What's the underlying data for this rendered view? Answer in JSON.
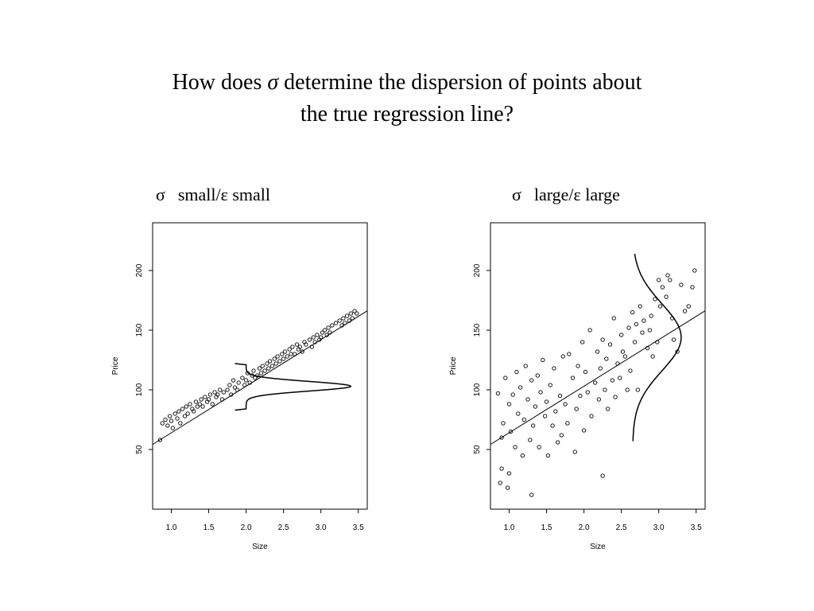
{
  "title": {
    "part1": "How does ",
    "sigma": "σ",
    "part2": " determine the dispersion of points about",
    "line2": "the true regression line?"
  },
  "panels": {
    "left": {
      "sigma": "σ",
      "text": "small/ε small"
    },
    "right": {
      "sigma": "σ",
      "text": "large/ε large"
    }
  },
  "chart_data": [
    {
      "type": "scatter",
      "title": "",
      "xlabel": "Size",
      "ylabel": "Price",
      "xlim": [
        0.75,
        3.62
      ],
      "ylim": [
        0,
        240
      ],
      "xticks": [
        "1.0",
        "1.5",
        "2.0",
        "2.5",
        "3.0",
        "3.5"
      ],
      "yticks": [
        "50",
        "100",
        "150",
        "200"
      ],
      "grid": false,
      "regression_line": {
        "intercept": 25,
        "slope": 39
      },
      "density_curve": {
        "center_x": 2.0,
        "mean": 103,
        "sd": 4,
        "height": 1.4,
        "range": [
          84,
          121
        ]
      },
      "series": [
        {
          "x": [
            0.85,
            0.88,
            0.92,
            0.95,
            0.98,
            1.0,
            1.02,
            1.05,
            1.08,
            1.1,
            1.12,
            1.15,
            1.18,
            1.2,
            1.22,
            1.25,
            1.28,
            1.3,
            1.33,
            1.35,
            1.38,
            1.4,
            1.42,
            1.45,
            1.48,
            1.5,
            1.52,
            1.55,
            1.58,
            1.6,
            1.62,
            1.65,
            1.68,
            1.7,
            1.75,
            1.78,
            1.8,
            1.83,
            1.85,
            1.88,
            1.9,
            1.95,
            1.98,
            2.0,
            2.02,
            2.05,
            2.08,
            2.1,
            2.12,
            2.15,
            2.18,
            2.2,
            2.22,
            2.25,
            2.28,
            2.3,
            2.32,
            2.35,
            2.38,
            2.4,
            2.42,
            2.45,
            2.48,
            2.5,
            2.52,
            2.55,
            2.58,
            2.6,
            2.62,
            2.65,
            2.68,
            2.7,
            2.72,
            2.75,
            2.78,
            2.8,
            2.85,
            2.88,
            2.9,
            2.92,
            2.95,
            2.98,
            3.0,
            3.02,
            3.05,
            3.08,
            3.1,
            3.12,
            3.15,
            3.2,
            3.25,
            3.28,
            3.3,
            3.32,
            3.35,
            3.38,
            3.4,
            3.42,
            3.45,
            3.48
          ],
          "y": [
            58,
            72,
            75,
            70,
            78,
            74,
            68,
            80,
            76,
            82,
            72,
            84,
            78,
            86,
            80,
            88,
            84,
            82,
            90,
            86,
            88,
            92,
            86,
            94,
            90,
            92,
            96,
            88,
            98,
            94,
            96,
            100,
            92,
            98,
            100,
            104,
            96,
            108,
            102,
            100,
            106,
            110,
            104,
            108,
            114,
            106,
            112,
            116,
            110,
            112,
            118,
            114,
            120,
            116,
            122,
            118,
            124,
            120,
            126,
            122,
            128,
            124,
            130,
            126,
            132,
            128,
            134,
            130,
            136,
            130,
            138,
            134,
            136,
            132,
            140,
            138,
            142,
            136,
            144,
            140,
            146,
            142,
            144,
            148,
            150,
            146,
            152,
            148,
            154,
            156,
            158,
            154,
            160,
            156,
            162,
            158,
            164,
            160,
            166,
            164
          ]
        }
      ]
    },
    {
      "type": "scatter",
      "title": "",
      "xlabel": "Size",
      "ylabel": "Price",
      "xlim": [
        0.75,
        3.62
      ],
      "ylim": [
        0,
        240
      ],
      "xticks": [
        "1.0",
        "1.5",
        "2.0",
        "2.5",
        "3.0",
        "3.5"
      ],
      "yticks": [
        "50",
        "100",
        "150",
        "200"
      ],
      "grid": false,
      "regression_line": {
        "intercept": 25,
        "slope": 39
      },
      "density_curve": {
        "center_y": 144,
        "base_x": 2.65,
        "mean_x": 3.3,
        "sd": 28,
        "height": 0.65,
        "range": [
          57,
          214
        ]
      },
      "series": [
        {
          "x": [
            0.85,
            0.88,
            0.9,
            0.92,
            0.95,
            0.98,
            1.0,
            1.02,
            1.05,
            1.08,
            1.1,
            1.12,
            1.15,
            1.18,
            1.2,
            1.22,
            1.25,
            1.28,
            1.3,
            1.32,
            1.35,
            1.38,
            1.4,
            1.42,
            1.45,
            1.48,
            1.5,
            1.52,
            1.55,
            1.58,
            1.6,
            1.62,
            1.65,
            1.68,
            1.7,
            1.72,
            1.75,
            1.78,
            1.8,
            1.85,
            1.88,
            1.9,
            1.92,
            1.95,
            1.98,
            2.0,
            2.02,
            2.05,
            2.08,
            2.1,
            2.15,
            2.18,
            2.2,
            2.22,
            2.25,
            2.28,
            2.3,
            2.32,
            2.35,
            2.38,
            2.4,
            2.42,
            2.45,
            2.48,
            2.5,
            2.52,
            2.55,
            2.58,
            2.6,
            2.62,
            2.65,
            2.68,
            2.7,
            2.72,
            2.75,
            2.78,
            2.8,
            2.85,
            2.88,
            2.9,
            2.92,
            2.95,
            2.98,
            3.0,
            3.02,
            3.05,
            3.1,
            3.12,
            3.15,
            3.18,
            3.2,
            3.25,
            3.3,
            3.35,
            3.4,
            3.45,
            3.48,
            1.3,
            2.25,
            0.9,
            1.0
          ],
          "y": [
            97,
            22,
            60,
            72,
            110,
            18,
            88,
            65,
            96,
            52,
            115,
            80,
            102,
            45,
            75,
            120,
            92,
            58,
            108,
            70,
            86,
            112,
            52,
            98,
            125,
            78,
            90,
            45,
            104,
            70,
            118,
            82,
            56,
            95,
            62,
            128,
            88,
            72,
            130,
            110,
            48,
            84,
            120,
            95,
            140,
            66,
            115,
            98,
            150,
            78,
            106,
            132,
            92,
            118,
            142,
            100,
            126,
            84,
            138,
            108,
            160,
            94,
            122,
            110,
            146,
            132,
            128,
            100,
            152,
            116,
            165,
            140,
            155,
            100,
            170,
            148,
            158,
            135,
            150,
            162,
            128,
            176,
            140,
            192,
            170,
            186,
            178,
            196,
            192,
            160,
            142,
            132,
            188,
            166,
            170,
            186,
            200,
            12,
            28,
            34,
            30
          ]
        }
      ]
    }
  ]
}
